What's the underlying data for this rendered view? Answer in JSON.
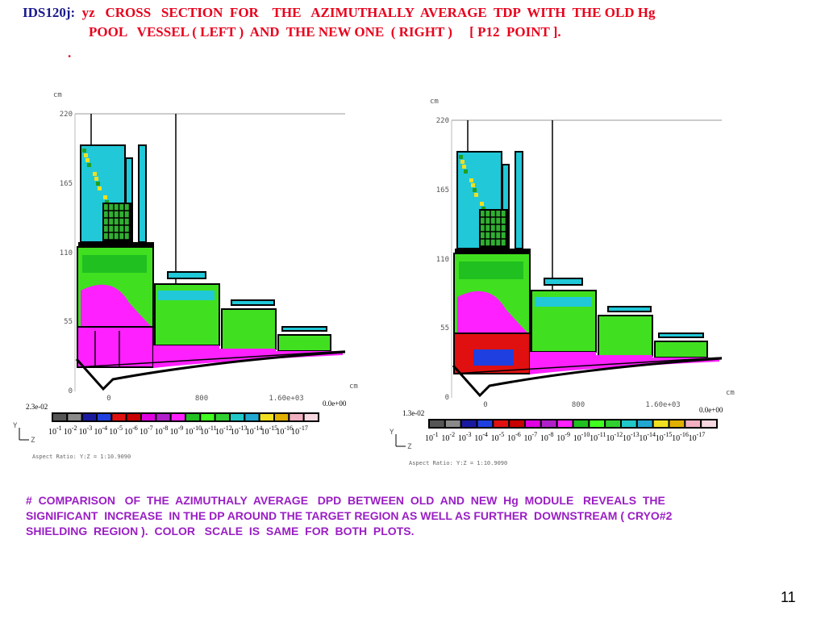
{
  "header": {
    "label": "IDS120j:",
    "title_lines": [
      "yz   CROSS   SECTION  FOR    THE   AZIMUTHALLY  AVERAGE  TDP  WITH  THE OLD Hg",
      "POOL   VESSEL ( LEFT )  AND  THE NEW ONE  ( RIGHT )     [ P12  POINT ]."
    ],
    "dot": "."
  },
  "plots": [
    {
      "y_unit": "cm",
      "y_ticks": [
        "220",
        "165",
        "110",
        "55",
        "0"
      ],
      "x_ticks": [
        "0",
        "800",
        "1.60e+03"
      ],
      "x_unit": "cm",
      "scale_max": "2.3e-02",
      "scale_min": "0.0e+00",
      "colorbar_base": "10",
      "colorbar_exponents": [
        "-1",
        "-2",
        "-3",
        "-4",
        "-5",
        "-6",
        "-7",
        "-8",
        "-9",
        "-10",
        "-11",
        "-12",
        "-13",
        "-14",
        "-15",
        "-16",
        "-17"
      ],
      "axis_y": "Y",
      "axis_z": "Z",
      "aspect": "Aspect Ratio: Y:Z = 1:10.9090"
    },
    {
      "y_unit": "cm",
      "y_ticks": [
        "220",
        "165",
        "110",
        "55",
        "0"
      ],
      "x_ticks": [
        "0",
        "800",
        "1.60e+03"
      ],
      "x_unit": "cm",
      "scale_max": "1.3e-02",
      "scale_min": "0.0e+00",
      "colorbar_base": "10",
      "colorbar_exponents": [
        "-1",
        "-2",
        "-3",
        "-4",
        "-5",
        "-6",
        "-7",
        "-8",
        "-9",
        "-10",
        "-11",
        "-12",
        "-13",
        "-14",
        "-15",
        "-16",
        "-17"
      ],
      "axis_y": "Y",
      "axis_z": "Z",
      "aspect": "Aspect Ratio: Y:Z = 1:10.9090"
    }
  ],
  "note_lines": [
    "#  COMPARISON   OF  THE  AZIMUTHALY  AVERAGE   DPD  BETWEEN  OLD  AND  NEW  Hg  MODULE   REVEALS  THE",
    "SIGNIFICANT  INCREASE  IN THE DP AROUND THE TARGET REGION AS WELL AS FURTHER  DOWNSTREAM ( CRYO#2",
    "SHIELDING  REGION ).  COLOR   SCALE  IS  SAME  FOR  BOTH  PLOTS."
  ],
  "page_number": "11"
}
